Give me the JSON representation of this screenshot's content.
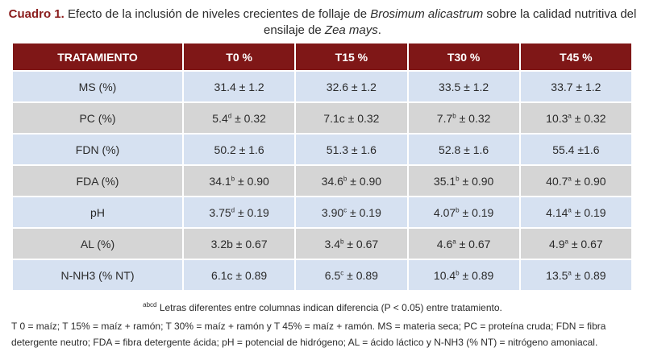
{
  "caption": {
    "number": "Cuadro 1.",
    "text_1": " Efecto de la inclusión de niveles crecientes de follaje de ",
    "species": "Brosimum alicastrum",
    "text_2": " sobre la calidad nutritiva del ensilaje de ",
    "crop": "Zea mays",
    "text_3": "."
  },
  "headers": [
    "TRATAMIENTO",
    "T0 %",
    "T15 %",
    "T30 %",
    "T45 %"
  ],
  "rows": [
    {
      "label": "MS (%)",
      "cells": [
        [
          "31.4 ± 1.2",
          "",
          ""
        ],
        [
          "32.6 ± 1.2",
          "",
          ""
        ],
        [
          "33.5 ± 1.2",
          "",
          ""
        ],
        [
          "33.7 ± 1.2",
          "",
          ""
        ]
      ]
    },
    {
      "label": "PC (%)",
      "cells": [
        [
          "5.4",
          "d",
          " ± 0.32"
        ],
        [
          "7.1c ± 0.32",
          "",
          ""
        ],
        [
          "7.7",
          "b",
          " ± 0.32"
        ],
        [
          "10.3",
          "a",
          " ± 0.32"
        ]
      ]
    },
    {
      "label": "FDN (%)",
      "cells": [
        [
          "50.2  ± 1.6",
          "",
          ""
        ],
        [
          "51.3  ± 1.6",
          "",
          ""
        ],
        [
          "52.8  ± 1.6",
          "",
          ""
        ],
        [
          "55.4  ±1.6",
          "",
          ""
        ]
      ]
    },
    {
      "label": "FDA (%)",
      "cells": [
        [
          "34.1",
          "b",
          " ± 0.90"
        ],
        [
          "34.6",
          "b",
          " ± 0.90"
        ],
        [
          "35.1",
          "b",
          " ± 0.90"
        ],
        [
          "40.7",
          "a",
          " ± 0.90"
        ]
      ]
    },
    {
      "label": "pH",
      "cells": [
        [
          "3.75",
          "d",
          " ± 0.19"
        ],
        [
          "3.90",
          "c",
          " ± 0.19"
        ],
        [
          "4.07",
          "b",
          " ± 0.19"
        ],
        [
          "4.14",
          "a",
          "  ± 0.19"
        ]
      ]
    },
    {
      "label": "AL (%)",
      "cells": [
        [
          "3.2b  ± 0.67",
          "",
          ""
        ],
        [
          "3.4",
          "b",
          " ± 0.67"
        ],
        [
          "4.6",
          "a",
          " ± 0.67"
        ],
        [
          "4.9",
          "a",
          " ± 0.67"
        ]
      ]
    },
    {
      "label": "N-NH3 (% NT)",
      "cells": [
        [
          "6.1c ± 0.89",
          "",
          ""
        ],
        [
          "6.5",
          "c",
          " ± 0.89"
        ],
        [
          "10.4",
          "b",
          " ± 0.89"
        ],
        [
          "13.5",
          "a",
          " ± 0.89"
        ]
      ]
    }
  ],
  "footnotes": {
    "sup": "abcd",
    "letters": " Letras diferentes entre columnas indican diferencia (P < 0.05) entre tratamiento.",
    "abbrev": "T 0 = maíz; T 15% = maíz + ramón; T 30% = maíz + ramón y T 45% = maíz + ramón. MS = materia seca; PC = proteína cruda; FDN = fibra detergente neutro; FDA = fibra detergente ácida; pH = potencial de hidrógeno; AL = ácido láctico y N-NH3 (% NT) = nitrógeno amoniacal."
  },
  "colors": {
    "header_bg": "#7f1717",
    "row_blue": "#d6e1f1",
    "row_gray": "#d5d5d5",
    "caption_accent": "#8a1c1c"
  }
}
